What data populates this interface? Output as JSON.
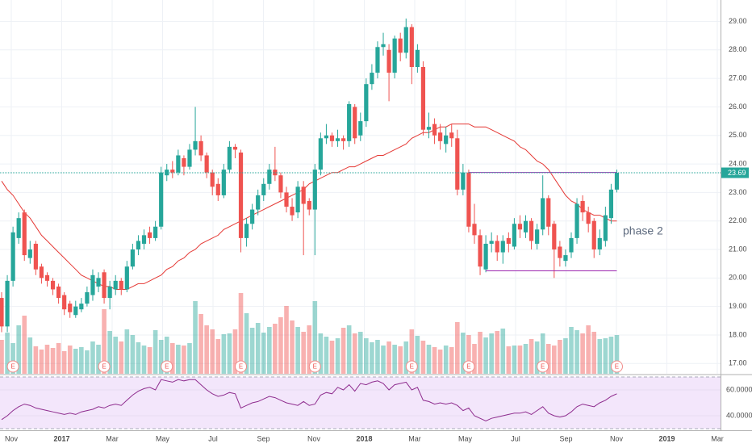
{
  "chart_data": {
    "type": "candlestick",
    "candles": [
      [
        19.3,
        19.5,
        18.1,
        18.3
      ],
      [
        18.3,
        20.1,
        18.1,
        19.9
      ],
      [
        19.9,
        21.8,
        19.7,
        21.6
      ],
      [
        21.4,
        22.3,
        21.2,
        22.1
      ],
      [
        22.3,
        22.4,
        20.6,
        20.8
      ],
      [
        20.7,
        21.3,
        20.5,
        21.0
      ],
      [
        21.2,
        21.3,
        20.1,
        20.3
      ],
      [
        20.4,
        20.5,
        19.8,
        20.0
      ],
      [
        20.1,
        20.2,
        19.7,
        19.9
      ],
      [
        19.9,
        20.0,
        19.4,
        19.6
      ],
      [
        19.7,
        19.8,
        19.1,
        19.3
      ],
      [
        19.4,
        19.5,
        18.7,
        18.9
      ],
      [
        19.1,
        19.2,
        18.6,
        18.8
      ],
      [
        18.7,
        19.2,
        18.6,
        19.0
      ],
      [
        18.9,
        19.3,
        18.8,
        19.1
      ],
      [
        19.1,
        19.7,
        19.0,
        19.5
      ],
      [
        19.4,
        20.3,
        19.2,
        20.1
      ],
      [
        19.7,
        20.2,
        19.5,
        20.0
      ],
      [
        20.2,
        20.3,
        19.1,
        19.3
      ],
      [
        19.3,
        19.9,
        18.9,
        19.7
      ],
      [
        19.6,
        20.1,
        19.4,
        19.9
      ],
      [
        19.9,
        20.0,
        19.4,
        19.6
      ],
      [
        19.6,
        20.6,
        19.5,
        20.4
      ],
      [
        20.4,
        21.2,
        20.3,
        21.0
      ],
      [
        21.0,
        21.5,
        20.8,
        21.3
      ],
      [
        21.2,
        21.7,
        21.0,
        21.5
      ],
      [
        21.6,
        21.8,
        21.2,
        21.4
      ],
      [
        21.4,
        22.0,
        21.3,
        21.8
      ],
      [
        21.8,
        23.9,
        21.7,
        23.7
      ],
      [
        23.6,
        24.0,
        23.4,
        23.8
      ],
      [
        23.8,
        24.1,
        23.5,
        23.7
      ],
      [
        23.7,
        24.5,
        23.6,
        24.3
      ],
      [
        24.2,
        24.3,
        23.6,
        23.9
      ],
      [
        23.9,
        24.7,
        23.8,
        24.5
      ],
      [
        24.5,
        26.0,
        24.3,
        24.8
      ],
      [
        24.8,
        25.0,
        24.1,
        24.3
      ],
      [
        24.3,
        24.4,
        23.5,
        23.7
      ],
      [
        23.7,
        23.8,
        22.9,
        23.2
      ],
      [
        23.3,
        23.5,
        22.7,
        22.9
      ],
      [
        22.9,
        24.0,
        22.8,
        23.8
      ],
      [
        23.8,
        24.8,
        23.7,
        24.6
      ],
      [
        24.6,
        24.7,
        24.2,
        24.5
      ],
      [
        24.4,
        24.5,
        20.9,
        21.4
      ],
      [
        21.4,
        22.1,
        21.1,
        21.9
      ],
      [
        21.9,
        22.6,
        21.7,
        22.4
      ],
      [
        22.4,
        23.1,
        22.2,
        22.9
      ],
      [
        22.9,
        23.5,
        22.7,
        23.3
      ],
      [
        23.3,
        24.0,
        23.1,
        23.8
      ],
      [
        23.8,
        24.6,
        23.4,
        23.6
      ],
      [
        23.6,
        23.7,
        22.8,
        23.0
      ],
      [
        23.0,
        23.2,
        22.3,
        22.5
      ],
      [
        22.5,
        22.8,
        22.0,
        22.2
      ],
      [
        22.3,
        23.4,
        22.1,
        23.2
      ],
      [
        23.2,
        23.4,
        20.8,
        22.6
      ],
      [
        22.7,
        22.8,
        22.2,
        22.4
      ],
      [
        22.4,
        24.0,
        20.8,
        23.8
      ],
      [
        23.8,
        25.1,
        23.6,
        24.9
      ],
      [
        24.9,
        25.4,
        24.7,
        25.0
      ],
      [
        25.0,
        25.1,
        24.6,
        24.8
      ],
      [
        24.8,
        25.2,
        24.6,
        24.9
      ],
      [
        24.9,
        25.0,
        24.5,
        24.8
      ],
      [
        24.8,
        26.2,
        24.6,
        26.1
      ],
      [
        26.0,
        26.1,
        24.7,
        24.9
      ],
      [
        25.0,
        25.8,
        24.8,
        25.5
      ],
      [
        25.5,
        27.0,
        25.3,
        26.8
      ],
      [
        26.8,
        27.5,
        26.6,
        27.2
      ],
      [
        27.2,
        28.3,
        27.0,
        28.1
      ],
      [
        28.1,
        28.6,
        27.8,
        28.2
      ],
      [
        28.0,
        28.2,
        26.2,
        27.2
      ],
      [
        27.2,
        28.5,
        27.0,
        28.4
      ],
      [
        28.4,
        28.6,
        27.6,
        27.9
      ],
      [
        27.9,
        29.1,
        27.7,
        28.8
      ],
      [
        28.8,
        28.9,
        26.8,
        27.4
      ],
      [
        27.4,
        28.2,
        27.2,
        28.0
      ],
      [
        27.4,
        27.6,
        25.0,
        25.2
      ],
      [
        25.2,
        25.8,
        24.9,
        25.3
      ],
      [
        25.4,
        25.6,
        24.7,
        25.0
      ],
      [
        25.1,
        25.4,
        24.5,
        24.8
      ],
      [
        24.7,
        25.3,
        24.4,
        25.0
      ],
      [
        25.1,
        25.4,
        24.6,
        24.9
      ],
      [
        24.9,
        25.2,
        22.9,
        23.1
      ],
      [
        23.1,
        24.0,
        22.9,
        23.7
      ],
      [
        23.7,
        23.8,
        21.6,
        21.8
      ],
      [
        21.9,
        22.6,
        21.2,
        21.5
      ],
      [
        21.5,
        21.7,
        20.1,
        20.4
      ],
      [
        20.3,
        21.5,
        20.2,
        21.2
      ],
      [
        21.2,
        21.6,
        20.9,
        21.3
      ],
      [
        21.3,
        21.5,
        20.6,
        20.9
      ],
      [
        20.9,
        21.5,
        20.5,
        21.3
      ],
      [
        21.4,
        21.6,
        20.9,
        21.2
      ],
      [
        21.1,
        22.1,
        21.0,
        21.9
      ],
      [
        21.9,
        22.2,
        21.4,
        21.7
      ],
      [
        21.6,
        22.2,
        21.4,
        22.0
      ],
      [
        22.0,
        22.1,
        21.0,
        21.3
      ],
      [
        21.2,
        21.9,
        21.0,
        21.7
      ],
      [
        21.7,
        23.6,
        21.5,
        22.8
      ],
      [
        22.8,
        22.9,
        21.5,
        21.8
      ],
      [
        21.9,
        22.0,
        20.0,
        21.0
      ],
      [
        21.1,
        21.3,
        20.4,
        20.7
      ],
      [
        20.6,
        21.0,
        20.4,
        20.8
      ],
      [
        20.9,
        21.6,
        20.7,
        21.4
      ],
      [
        21.4,
        22.8,
        21.2,
        22.6
      ],
      [
        22.7,
        22.9,
        22.0,
        22.3
      ],
      [
        22.3,
        22.5,
        21.6,
        21.9
      ],
      [
        22.0,
        22.1,
        20.7,
        21.0
      ],
      [
        21.0,
        21.7,
        20.8,
        21.4
      ],
      [
        21.3,
        22.5,
        21.1,
        22.2
      ],
      [
        22.1,
        23.3,
        21.9,
        23.1
      ],
      [
        23.1,
        23.8,
        23.0,
        23.69
      ]
    ],
    "volume": [
      4.2,
      5.1,
      3.8,
      6.0,
      7.2,
      4.5,
      3.4,
      3.0,
      3.6,
      3.2,
      3.8,
      2.8,
      3.5,
      3.1,
      3.3,
      2.9,
      4.0,
      3.6,
      8.0,
      5.3,
      4.6,
      4.0,
      5.5,
      4.8,
      3.9,
      3.5,
      3.3,
      5.4,
      4.2,
      4.6,
      3.8,
      3.6,
      3.5,
      3.8,
      9.0,
      7.4,
      6.0,
      5.5,
      4.3,
      4.9,
      5.0,
      5.5,
      10.0,
      7.5,
      5.7,
      6.3,
      5.1,
      5.8,
      6.2,
      7.0,
      8.4,
      6.6,
      5.8,
      5.2,
      6.0,
      9.0,
      5.0,
      4.6,
      4.1,
      4.4,
      5.7,
      6.0,
      5.0,
      5.2,
      4.4,
      3.9,
      4.2,
      3.5,
      4.0,
      3.6,
      3.4,
      4.0,
      5.5,
      4.7,
      4.1,
      3.6,
      3.3,
      3.0,
      3.5,
      3.3,
      6.4,
      5.1,
      4.8,
      3.7,
      5.2,
      4.5,
      5.0,
      5.3,
      5.6,
      3.4,
      3.5,
      3.5,
      3.7,
      4.3,
      4.0,
      5.0,
      3.7,
      3.5,
      4.2,
      4.4,
      5.8,
      5.4,
      5.0,
      6.0,
      5.2,
      4.3,
      4.4,
      4.6,
      4.8
    ],
    "ma": [
      23.4,
      23.1,
      22.9,
      22.6,
      22.3,
      22.1,
      21.8,
      21.5,
      21.3,
      21.1,
      20.9,
      20.7,
      20.5,
      20.3,
      20.1,
      20.0,
      19.9,
      19.8,
      19.7,
      19.7,
      19.6,
      19.6,
      19.6,
      19.7,
      19.8,
      19.8,
      19.9,
      20.0,
      20.1,
      20.3,
      20.4,
      20.6,
      20.7,
      20.9,
      21.0,
      21.2,
      21.3,
      21.4,
      21.5,
      21.7,
      21.8,
      21.9,
      22.0,
      22.1,
      22.2,
      22.3,
      22.4,
      22.5,
      22.6,
      22.7,
      22.8,
      22.9,
      23.0,
      23.1,
      23.3,
      23.4,
      23.5,
      23.6,
      23.7,
      23.7,
      23.8,
      23.9,
      23.9,
      24.0,
      24.1,
      24.2,
      24.3,
      24.3,
      24.4,
      24.5,
      24.6,
      24.7,
      24.9,
      25.0,
      25.1,
      25.1,
      25.2,
      25.3,
      25.3,
      25.4,
      25.4,
      25.4,
      25.4,
      25.3,
      25.3,
      25.3,
      25.2,
      25.1,
      25.0,
      24.9,
      24.8,
      24.6,
      24.5,
      24.3,
      24.1,
      24.0,
      23.8,
      23.5,
      23.2,
      22.9,
      22.7,
      22.6,
      22.4,
      22.3,
      22.2,
      22.2,
      22.1,
      22.0,
      22.0
    ],
    "rsi": [
      37,
      40,
      44,
      47,
      49,
      48,
      46,
      45,
      44,
      43,
      42,
      41,
      42,
      41,
      43,
      44,
      45,
      47,
      46,
      48,
      49,
      48,
      52,
      56,
      59,
      61,
      62,
      60,
      68,
      67,
      66,
      68,
      67,
      68,
      68,
      64,
      60,
      57,
      55,
      56,
      58,
      57,
      46,
      48,
      50,
      51,
      53,
      55,
      54,
      52,
      50,
      49,
      48,
      51,
      48,
      49,
      56,
      58,
      57,
      62,
      60,
      64,
      59,
      65,
      64,
      66,
      67,
      65,
      60,
      64,
      65,
      66,
      60,
      62,
      52,
      51,
      49,
      50,
      49,
      50,
      48,
      44,
      46,
      40,
      38,
      36,
      38,
      39,
      40,
      41,
      42,
      42,
      43,
      41,
      44,
      47,
      42,
      40,
      39,
      40,
      43,
      47,
      49,
      48,
      47,
      50,
      52,
      55,
      57
    ],
    "rsi_band": [
      30,
      70
    ],
    "ylim": [
      16.64,
      29.75
    ],
    "yticks": [
      {
        "value": 17,
        "label": "17.00"
      },
      {
        "value": 18,
        "label": "18.00"
      },
      {
        "value": 19,
        "label": "19.00"
      },
      {
        "value": 20,
        "label": "20.00"
      },
      {
        "value": 21,
        "label": "21.00"
      },
      {
        "value": 22,
        "label": "22.00"
      },
      {
        "value": 23,
        "label": "23.00"
      },
      {
        "value": 24,
        "label": "24.00"
      },
      {
        "value": 25,
        "label": "25.00"
      },
      {
        "value": 26,
        "label": "26.00"
      },
      {
        "value": 27,
        "label": "27.00"
      },
      {
        "value": 28,
        "label": "28.00"
      },
      {
        "value": 29,
        "label": "29.00"
      }
    ],
    "rsi_ticks": [
      {
        "value": 60,
        "label": "60.0000"
      },
      {
        "value": 40,
        "label": "40.0000"
      }
    ],
    "last_price": {
      "value": 23.69,
      "label": "23.69"
    },
    "x_labels": [
      "Nov",
      "2017",
      "Mar",
      "May",
      "Jul",
      "Sep",
      "Nov",
      "2018",
      "Mar",
      "May",
      "Jul",
      "Sep",
      "Nov",
      "2019",
      "Mar"
    ],
    "earnings_label": "E",
    "earnings": [
      2,
      18,
      29,
      42,
      55,
      72,
      82,
      95,
      108
    ],
    "levels": [
      {
        "value": 23.7,
        "from": 82,
        "to": 108
      },
      {
        "value": 20.25,
        "from": 85,
        "to": 108
      }
    ],
    "annotation": "phase 2",
    "colors": {
      "up": "#26a69a",
      "down": "#ef5350",
      "ma": "#e53935",
      "rsi": "#8e2c8e",
      "level": "#9c27b0"
    },
    "grid": true
  }
}
